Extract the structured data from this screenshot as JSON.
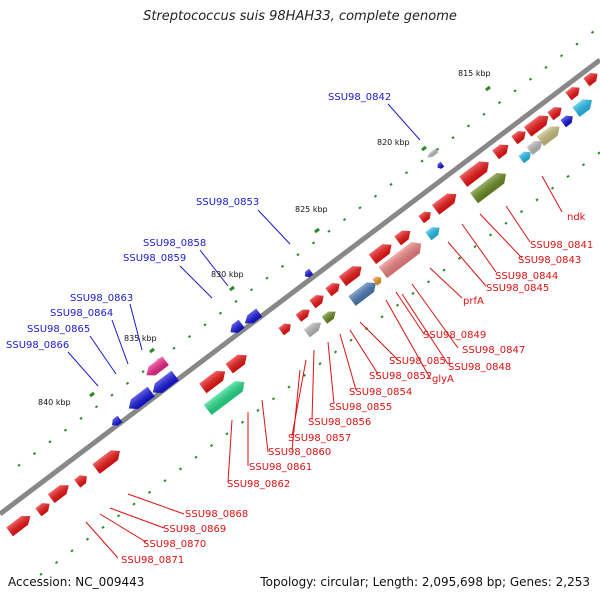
{
  "title": "Streptococcus suis 98HAH33, complete genome",
  "footer": {
    "accession": "Accession: NC_009443",
    "summary": "Topology: circular; Length: 2,095,698 bp; Genes: 2,253"
  },
  "scale": {
    "ticks": [
      "815 kbp",
      "820 kbp",
      "825 kbp",
      "830 kbp",
      "835 kbp",
      "840 kbp"
    ]
  },
  "labels": {
    "blue": [
      "SSU98_0842",
      "SSU98_0853",
      "SSU98_0858",
      "SSU98_0859",
      "SSU98_0863",
      "SSU98_0864",
      "SSU98_0865",
      "SSU98_0866"
    ],
    "red": [
      "ndk",
      "SSU98_0841",
      "SSU98_0843",
      "SSU98_0844",
      "SSU98_0845",
      "prfA",
      "SSU98_0849",
      "SSU98_0847",
      "SSU98_0848",
      "SSU98_0851",
      "glyA",
      "SSU98_0852",
      "SSU98_0854",
      "SSU98_0855",
      "SSU98_0856",
      "SSU98_0857",
      "SSU98_0860",
      "SSU98_0861",
      "SSU98_0862",
      "SSU98_0868",
      "SSU98_0869",
      "SSU98_0870",
      "SSU98_0871"
    ]
  },
  "colors": {
    "forward_gene": "#ee1111",
    "reverse_gene": "#1111dd",
    "backbone": "#888888",
    "tick": "#2a8a2a",
    "label_blue": "#1a1acc",
    "label_red": "#dd1111"
  }
}
